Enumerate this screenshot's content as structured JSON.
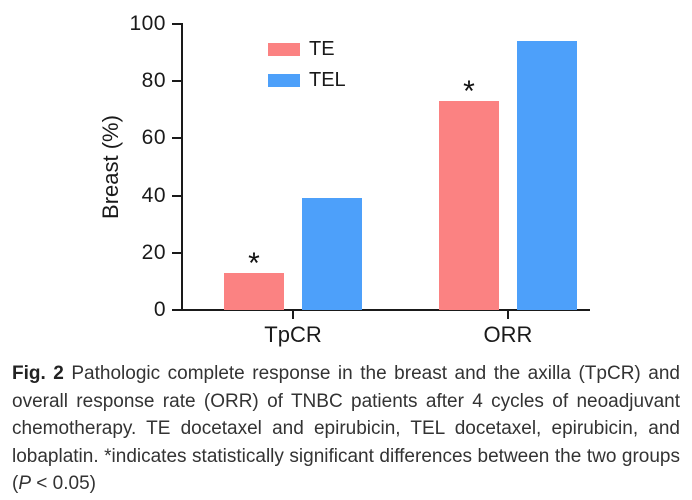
{
  "figure": {
    "background": "#ffffff",
    "axis_color": "#1a1a1a"
  },
  "chart_data": {
    "type": "bar",
    "categories": [
      "TpCR",
      "ORR"
    ],
    "series": [
      {
        "name": "TE",
        "color": "#fb8282",
        "values": [
          13,
          73
        ],
        "significant": [
          true,
          true
        ]
      },
      {
        "name": "TEL",
        "color": "#4da0fa",
        "values": [
          39,
          94
        ],
        "significant": [
          false,
          false
        ]
      }
    ],
    "title": "",
    "xlabel": "",
    "ylabel": "Breast (%)",
    "ylim": [
      0,
      100
    ],
    "yticks": [
      0,
      20,
      40,
      60,
      80,
      100
    ],
    "grid": false,
    "legend_position": "top-left-inside",
    "significance_marker": "*"
  },
  "caption": {
    "label": "Fig. 2",
    "body": " Pathologic complete response in the breast and the axilla (TpCR) and overall response rate (ORR) of TNBC patients after 4 cycles of neoadjuvant chemotherapy. TE docetaxel and epirubicin, TEL docetaxel, epirubicin, and lobaplatin. *indicates statistically significant differences between the two groups (",
    "p_italic": "P",
    "p_rest": " < 0.05)"
  }
}
